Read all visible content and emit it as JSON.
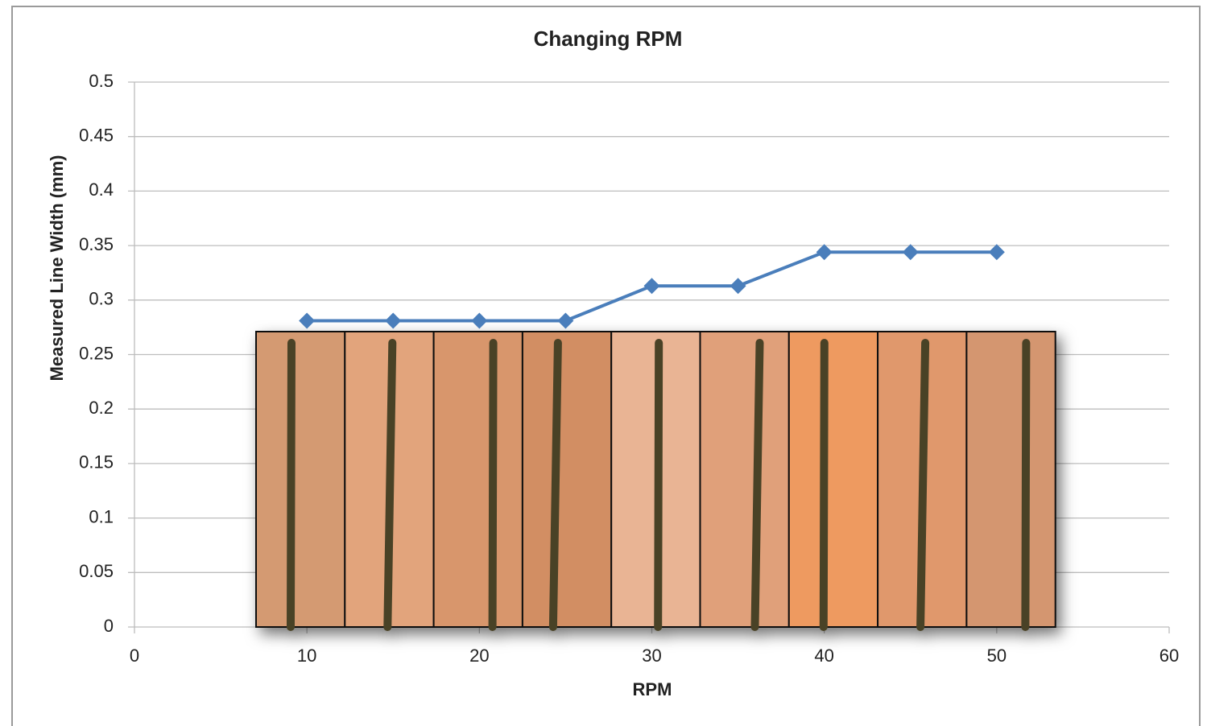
{
  "chart_data": {
    "type": "line",
    "title": "Changing RPM",
    "x_label": "RPM",
    "y_label": "Measured Line Width (mm)",
    "x": [
      10,
      15,
      20,
      25,
      30,
      35,
      40,
      45,
      50
    ],
    "values": [
      0.281,
      0.281,
      0.281,
      0.281,
      0.313,
      0.313,
      0.344,
      0.344,
      0.344
    ],
    "color": "#4a7ebb",
    "xlim": [
      0,
      60
    ],
    "xticks": [
      0,
      10,
      20,
      30,
      40,
      50,
      60
    ],
    "ylim": [
      0,
      0.5
    ],
    "yticks": [
      0,
      0.05,
      0.1,
      0.15,
      0.2,
      0.25,
      0.3,
      0.35,
      0.4,
      0.45,
      0.5
    ],
    "grid": true
  }
}
